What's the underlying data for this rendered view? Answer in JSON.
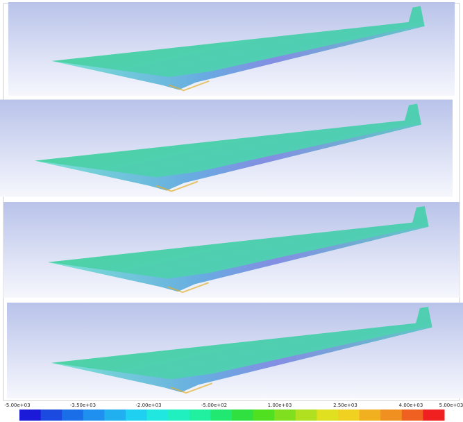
{
  "colorbar": {
    "tick_labels": [
      "-5.00e+03",
      "-3.50e+03",
      "-2.00e+03",
      "-5.00e+02",
      "1.00e+03",
      "2.50e+03",
      "4.00e+03",
      "5.00e+03"
    ],
    "colors": [
      "#1a1ad8",
      "#1a4ae0",
      "#1a6ee8",
      "#2090f0",
      "#20b0f0",
      "#20d0f0",
      "#20e8e0",
      "#20f0c0",
      "#20f0a0",
      "#20e870",
      "#30e040",
      "#50e020",
      "#80e020",
      "#b0e020",
      "#e0e020",
      "#f0d020",
      "#f0b020",
      "#f09020",
      "#f06020",
      "#f02020"
    ]
  }
}
